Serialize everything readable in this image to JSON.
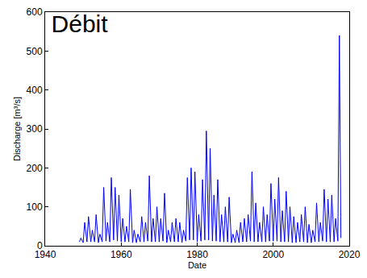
{
  "chart_data": {
    "type": "line",
    "title": "Débit",
    "x_label": "Date",
    "y_label": "Discharge [m³/s]",
    "color": "#0000ff",
    "grid": false,
    "xlim": [
      1940,
      2020
    ],
    "xticks": [
      1940,
      1960,
      1980,
      2000,
      2020
    ],
    "ylim": [
      0,
      600
    ],
    "yticks": [
      0,
      100,
      200,
      300,
      400,
      500,
      600
    ],
    "x": [
      1949,
      1949.4,
      1950,
      1950.4,
      1951,
      1951.4,
      1952,
      1952.4,
      1953,
      1953.4,
      1954,
      1954.4,
      1955,
      1955.4,
      1956,
      1956.4,
      1957,
      1957.4,
      1958,
      1958.4,
      1959,
      1959.4,
      1960,
      1960.4,
      1961,
      1961.4,
      1962,
      1962.4,
      1963,
      1963.4,
      1964,
      1964.4,
      1965,
      1965.4,
      1966,
      1966.4,
      1967,
      1967.4,
      1968,
      1968.4,
      1969,
      1969.4,
      1970,
      1970.4,
      1971,
      1971.4,
      1972,
      1972.4,
      1973,
      1973.4,
      1974,
      1974.4,
      1975,
      1975.4,
      1976,
      1976.4,
      1977,
      1977.4,
      1978,
      1978.4,
      1979,
      1979.4,
      1980,
      1980.4,
      1981,
      1981.4,
      1982,
      1982.4,
      1983,
      1983.4,
      1984,
      1984.4,
      1985,
      1985.4,
      1986,
      1986.4,
      1987,
      1987.4,
      1988,
      1988.4,
      1989,
      1989.4,
      1990,
      1990.4,
      1991,
      1991.4,
      1992,
      1992.4,
      1993,
      1993.4,
      1994,
      1994.4,
      1995,
      1995.4,
      1996,
      1996.4,
      1997,
      1997.4,
      1998,
      1998.4,
      1999,
      1999.4,
      2000,
      2000.4,
      2001,
      2001.4,
      2002,
      2002.4,
      2003,
      2003.4,
      2004,
      2004.4,
      2005,
      2005.4,
      2006,
      2006.4,
      2007,
      2007.4,
      2008,
      2008.4,
      2009,
      2009.4,
      2010,
      2010.4,
      2011,
      2011.4,
      2012,
      2012.4,
      2013,
      2013.4,
      2014,
      2014.4,
      2015,
      2015.4,
      2016,
      2016.4,
      2017,
      2017.4,
      2017.8
    ],
    "values": [
      10,
      20,
      8,
      60,
      10,
      75,
      10,
      40,
      10,
      80,
      8,
      30,
      10,
      150,
      12,
      60,
      10,
      175,
      15,
      150,
      12,
      130,
      10,
      70,
      10,
      50,
      10,
      145,
      8,
      40,
      8,
      30,
      10,
      75,
      10,
      60,
      12,
      180,
      10,
      70,
      10,
      100,
      10,
      70,
      12,
      135,
      8,
      40,
      10,
      60,
      10,
      70,
      10,
      60,
      8,
      40,
      12,
      175,
      15,
      200,
      15,
      190,
      10,
      80,
      12,
      170,
      15,
      295,
      15,
      250,
      12,
      130,
      12,
      170,
      10,
      80,
      10,
      100,
      10,
      125,
      8,
      30,
      8,
      40,
      8,
      60,
      10,
      70,
      10,
      80,
      12,
      190,
      10,
      110,
      10,
      60,
      10,
      100,
      10,
      80,
      12,
      160,
      12,
      120,
      12,
      175,
      10,
      90,
      10,
      140,
      10,
      100,
      8,
      75,
      8,
      60,
      10,
      80,
      10,
      100,
      8,
      55,
      8,
      40,
      10,
      110,
      10,
      60,
      12,
      145,
      10,
      120,
      10,
      130,
      10,
      70,
      12,
      540,
      20
    ]
  }
}
